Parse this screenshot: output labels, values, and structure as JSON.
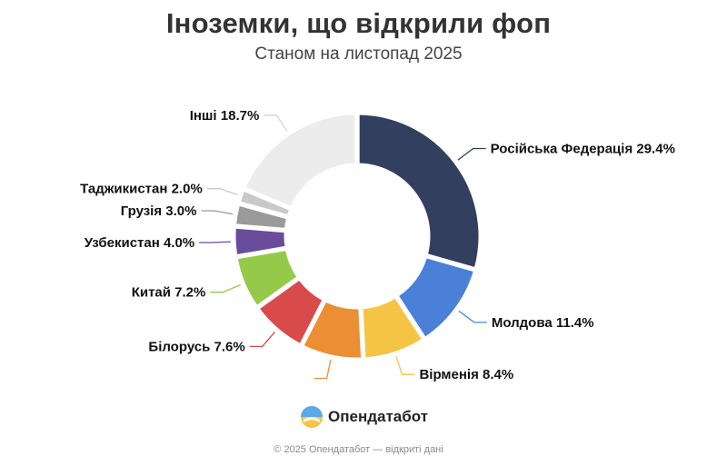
{
  "chart_data": {
    "type": "pie",
    "title": "Іноземки, що відкрили фоп",
    "subtitle": "Станом на листопад 2025",
    "slices": [
      {
        "label": "Російська Федерація",
        "value": 29.4,
        "color": "#323f5f",
        "display": "Російська Федерація 29.4%"
      },
      {
        "label": "Молдова",
        "value": 11.4,
        "color": "#4a80d8",
        "display": "Молдова 11.4%"
      },
      {
        "label": "Вірменія",
        "value": 8.4,
        "color": "#f5c445",
        "display": "Вірменія 8.4%"
      },
      {
        "label": "",
        "value": 8.3,
        "color": "#ec8e34",
        "display": ""
      },
      {
        "label": "Білорусь",
        "value": 7.6,
        "color": "#d94a4a",
        "display": "Білорусь 7.6%"
      },
      {
        "label": "Китай",
        "value": 7.2,
        "color": "#94c94a",
        "display": "Китай 7.2%"
      },
      {
        "label": "Узбекистан",
        "value": 4.0,
        "color": "#6a4c9c",
        "display": "Узбекистан 4.0%"
      },
      {
        "label": "Грузія",
        "value": 3.0,
        "color": "#9a9a9a",
        "display": "Грузія 3.0%"
      },
      {
        "label": "Таджикистан",
        "value": 2.0,
        "color": "#c9c9c9",
        "display": "Таджикистан 2.0%"
      },
      {
        "label": "Інші",
        "value": 18.7,
        "color": "#ececec",
        "display": "Інші 18.7%"
      }
    ]
  },
  "brand": {
    "name": "Опендатабот",
    "logo_icon": "opendatabot-logo-icon"
  },
  "footer": {
    "text": "© 2025 Опендатабот — відкриті дані"
  }
}
